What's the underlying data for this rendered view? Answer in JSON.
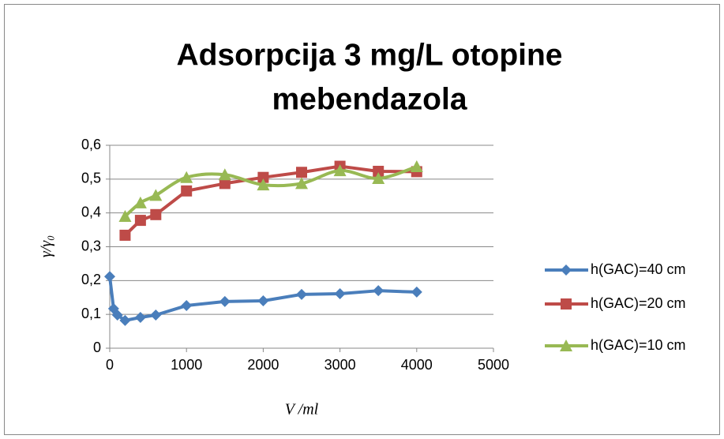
{
  "chart_data": {
    "type": "line",
    "title": [
      "Adsorpcija 3 mg/L otopine",
      "mebendazola"
    ],
    "x_label": "V /ml",
    "y_label": "γ/γ₀",
    "xlim": [
      0,
      5000
    ],
    "xticks": [
      0,
      1000,
      2000,
      3000,
      4000,
      5000
    ],
    "ylim": [
      0,
      0.6
    ],
    "yticks": [
      0,
      {
        "value": 0.1,
        "label": "0,1"
      },
      {
        "value": 0.2,
        "label": "0,2"
      },
      {
        "value": 0.3,
        "label": "0,3"
      },
      {
        "value": 0.4,
        "label": "0,4"
      },
      {
        "value": 0.5,
        "label": "0,5"
      },
      {
        "value": 0.6,
        "label": "0,6"
      }
    ],
    "grid": true,
    "legend": "right",
    "series": [
      {
        "name": "h(GAC)=40 cm",
        "color": "#4a7ebb",
        "marker": "diamond",
        "smooth": false,
        "x": [
          0,
          50,
          100,
          200,
          400,
          600,
          1000,
          1500,
          2000,
          2500,
          3000,
          3500,
          4000
        ],
        "values": [
          0.212,
          0.117,
          0.098,
          0.082,
          0.091,
          0.098,
          0.126,
          0.138,
          0.14,
          0.159,
          0.161,
          0.17,
          0.166
        ]
      },
      {
        "name": "h(GAC)=20 cm",
        "color": "#be4b48",
        "marker": "square",
        "smooth": false,
        "x": [
          200,
          400,
          600,
          1000,
          1500,
          2000,
          2500,
          3000,
          3500,
          4000
        ],
        "values": [
          0.334,
          0.378,
          0.395,
          0.465,
          0.487,
          0.505,
          0.52,
          0.538,
          0.523,
          0.522
        ]
      },
      {
        "name": "h(GAC)=10 cm",
        "color": "#98b954",
        "marker": "triangle",
        "smooth": true,
        "x": [
          200,
          400,
          600,
          1000,
          1500,
          2000,
          2500,
          3000,
          3500,
          4000
        ],
        "values": [
          0.39,
          0.43,
          0.452,
          0.505,
          0.513,
          0.483,
          0.487,
          0.525,
          0.502,
          0.537
        ]
      }
    ]
  }
}
